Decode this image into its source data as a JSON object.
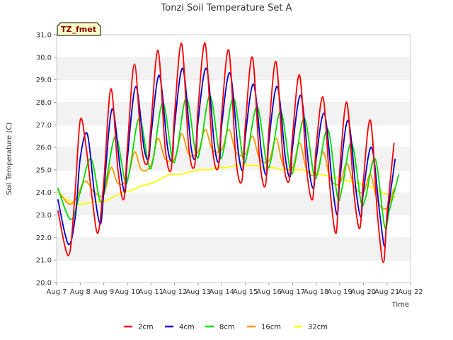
{
  "chart_data": {
    "type": "line",
    "title": "Tonzi Soil Temperature Set A",
    "xlabel": "Time",
    "ylabel": "Soil Temperature (C)",
    "badge": "TZ_fmet",
    "xlim": [
      7,
      22
    ],
    "ylim": [
      20.0,
      31.0
    ],
    "x_ticks": [
      7,
      8,
      9,
      10,
      11,
      12,
      13,
      14,
      15,
      16,
      17,
      18,
      19,
      20,
      21,
      22
    ],
    "x_tick_labels": [
      "Aug 7",
      "Aug 8",
      "Aug 9",
      "Aug 10",
      "Aug 11",
      "Aug 12",
      "Aug 13",
      "Aug 14",
      "Aug 15",
      "Aug 16",
      "Aug 17",
      "Aug 18",
      "Aug 19",
      "Aug 20",
      "Aug 21",
      "Aug 22"
    ],
    "y_ticks": [
      20.0,
      21.0,
      22.0,
      23.0,
      24.0,
      25.0,
      26.0,
      27.0,
      28.0,
      29.0,
      30.0,
      31.0
    ],
    "y_tick_labels": [
      "20.0",
      "21.0",
      "22.0",
      "23.0",
      "24.0",
      "25.0",
      "26.0",
      "27.0",
      "28.0",
      "29.0",
      "30.0",
      "31.0"
    ],
    "grid": "horizontal bands",
    "legend_position": "bottom",
    "series": [
      {
        "name": "2cm",
        "color": "#ff0000",
        "x": [
          7.05,
          7.5,
          7.75,
          8.0,
          8.25,
          8.5,
          8.75,
          9.0,
          9.3,
          9.6,
          9.85,
          10.0,
          10.3,
          10.6,
          10.85,
          11.0,
          11.3,
          11.6,
          11.85,
          12.0,
          12.3,
          12.6,
          12.85,
          13.0,
          13.3,
          13.6,
          13.85,
          14.0,
          14.3,
          14.6,
          14.85,
          15.0,
          15.3,
          15.6,
          15.85,
          16.0,
          16.3,
          16.6,
          16.85,
          17.0,
          17.3,
          17.6,
          17.85,
          18.0,
          18.3,
          18.6,
          18.85,
          19.0,
          19.3,
          19.6,
          19.85,
          20.0,
          20.3,
          20.6,
          20.85,
          21.0,
          21.3
        ],
        "y": [
          23.2,
          21.2,
          23.5,
          27.2,
          26.0,
          23.8,
          22.2,
          24.5,
          28.6,
          25.0,
          23.7,
          26.0,
          29.7,
          26.0,
          25.3,
          27.0,
          30.3,
          26.0,
          25.0,
          27.5,
          30.6,
          26.0,
          25.2,
          27.8,
          30.6,
          26.0,
          25.1,
          27.5,
          30.3,
          25.5,
          24.5,
          27.0,
          30.0,
          25.5,
          24.3,
          26.8,
          29.8,
          25.5,
          24.5,
          26.5,
          29.2,
          25.0,
          23.7,
          26.0,
          28.2,
          24.0,
          22.2,
          25.0,
          28.0,
          24.0,
          22.4,
          24.5,
          27.2,
          23.0,
          20.9,
          23.0,
          26.2
        ]
      },
      {
        "name": "4cm",
        "color": "#0000cc",
        "x": [
          7.05,
          7.5,
          7.8,
          8.0,
          8.3,
          8.6,
          8.85,
          9.0,
          9.35,
          9.7,
          9.9,
          10.0,
          10.35,
          10.7,
          10.9,
          11.0,
          11.35,
          11.7,
          11.9,
          12.0,
          12.35,
          12.7,
          12.9,
          13.0,
          13.35,
          13.7,
          13.9,
          14.0,
          14.35,
          14.7,
          14.9,
          15.0,
          15.35,
          15.7,
          15.9,
          16.0,
          16.35,
          16.7,
          16.9,
          17.0,
          17.35,
          17.7,
          17.9,
          18.0,
          18.35,
          18.7,
          18.9,
          19.0,
          19.35,
          19.7,
          19.9,
          20.0,
          20.35,
          20.7,
          20.9,
          21.0,
          21.35
        ],
        "y": [
          23.7,
          21.7,
          23.0,
          25.5,
          26.6,
          24.0,
          22.6,
          24.0,
          27.7,
          25.0,
          24.0,
          25.5,
          28.7,
          26.0,
          25.5,
          26.5,
          29.2,
          26.0,
          25.5,
          27.0,
          29.5,
          26.0,
          25.6,
          27.2,
          29.5,
          26.0,
          25.4,
          27.0,
          29.3,
          25.8,
          25.0,
          26.5,
          28.8,
          25.6,
          24.8,
          26.3,
          28.7,
          25.5,
          24.7,
          26.0,
          28.3,
          25.0,
          24.2,
          25.5,
          27.5,
          24.2,
          23.0,
          24.5,
          27.2,
          24.0,
          22.9,
          24.0,
          26.0,
          23.0,
          21.6,
          22.8,
          25.5
        ]
      },
      {
        "name": "8cm",
        "color": "#00dd00",
        "x": [
          7.05,
          7.6,
          8.0,
          8.45,
          8.85,
          9.1,
          9.5,
          9.9,
          10.1,
          10.5,
          10.9,
          11.1,
          11.5,
          11.9,
          12.1,
          12.5,
          12.9,
          13.1,
          13.5,
          13.9,
          14.1,
          14.5,
          14.9,
          15.1,
          15.5,
          15.9,
          16.1,
          16.5,
          16.9,
          17.1,
          17.5,
          17.9,
          18.1,
          18.5,
          18.9,
          19.1,
          19.5,
          19.9,
          20.1,
          20.5,
          20.9,
          21.1,
          21.5
        ],
        "y": [
          24.2,
          22.8,
          24.0,
          25.5,
          23.6,
          24.5,
          26.5,
          24.5,
          25.0,
          27.3,
          25.2,
          25.5,
          28.0,
          25.5,
          25.8,
          28.2,
          25.7,
          26.0,
          28.3,
          25.7,
          26.0,
          28.2,
          25.5,
          25.8,
          27.8,
          25.3,
          25.5,
          27.6,
          25.0,
          25.3,
          27.3,
          24.8,
          25.0,
          26.8,
          23.8,
          24.2,
          26.2,
          23.6,
          23.8,
          25.5,
          22.5,
          23.2,
          24.8
        ]
      },
      {
        "name": "16cm",
        "color": "#ff9900",
        "x": [
          7.05,
          7.5,
          7.8,
          8.2,
          8.6,
          9.0,
          9.3,
          9.6,
          10.0,
          10.3,
          10.6,
          11.0,
          11.3,
          11.6,
          12.0,
          12.3,
          12.6,
          13.0,
          13.3,
          13.6,
          14.0,
          14.3,
          14.6,
          15.0,
          15.3,
          15.6,
          16.0,
          16.3,
          16.6,
          17.0,
          17.3,
          17.6,
          18.0,
          18.3,
          18.6,
          19.0,
          19.3,
          19.6,
          20.0,
          20.3,
          20.6,
          21.0,
          21.3
        ],
        "y": [
          24.1,
          23.5,
          23.7,
          24.5,
          24.0,
          23.9,
          25.1,
          24.4,
          24.6,
          25.8,
          25.0,
          25.2,
          26.4,
          25.5,
          25.5,
          26.6,
          25.7,
          25.8,
          26.8,
          25.9,
          25.9,
          26.8,
          25.8,
          25.7,
          26.5,
          25.5,
          25.4,
          26.4,
          25.2,
          25.1,
          26.2,
          25.0,
          24.8,
          25.8,
          24.6,
          24.4,
          25.3,
          24.3,
          24.0,
          24.8,
          23.6,
          23.3,
          24.2
        ]
      },
      {
        "name": "32cm",
        "color": "#ffff00",
        "x": [
          7.05,
          7.4,
          7.8,
          8.2,
          8.6,
          9.0,
          9.4,
          9.8,
          10.2,
          10.6,
          11.0,
          11.4,
          11.8,
          12.2,
          12.6,
          13.0,
          13.4,
          13.8,
          14.2,
          14.6,
          15.0,
          15.4,
          15.8,
          16.2,
          16.6,
          17.0,
          17.4,
          17.8,
          18.2,
          18.6,
          19.0,
          19.4,
          19.8,
          20.2,
          20.6,
          21.0,
          21.35
        ],
        "y": [
          24.0,
          23.7,
          23.5,
          23.5,
          23.6,
          23.6,
          23.8,
          24.0,
          24.1,
          24.3,
          24.4,
          24.6,
          24.8,
          24.8,
          24.9,
          25.0,
          25.0,
          25.1,
          25.1,
          25.2,
          25.2,
          25.2,
          25.1,
          25.1,
          25.0,
          25.0,
          25.0,
          24.9,
          24.8,
          24.7,
          24.6,
          24.5,
          24.4,
          24.3,
          24.1,
          23.9,
          23.8
        ]
      }
    ]
  }
}
